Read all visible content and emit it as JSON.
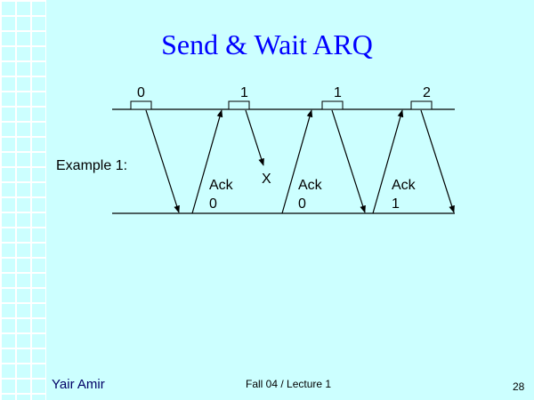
{
  "slide": {
    "title": "Send & Wait ARQ",
    "example_label": "Example 1:",
    "frames": [
      "0",
      "1",
      "1",
      "2"
    ],
    "lost_marker": "X",
    "acks": [
      {
        "word": "Ack",
        "num": "0"
      },
      {
        "word": "Ack",
        "num": "0"
      },
      {
        "word": "Ack",
        "num": "1"
      }
    ]
  },
  "footer": {
    "author": "Yair Amir",
    "course": "Fall 04 / Lecture 1",
    "page": "28"
  },
  "colors": {
    "background": "#CCFFFF",
    "title": "#0000FF",
    "grid": "#FFFFFF"
  }
}
